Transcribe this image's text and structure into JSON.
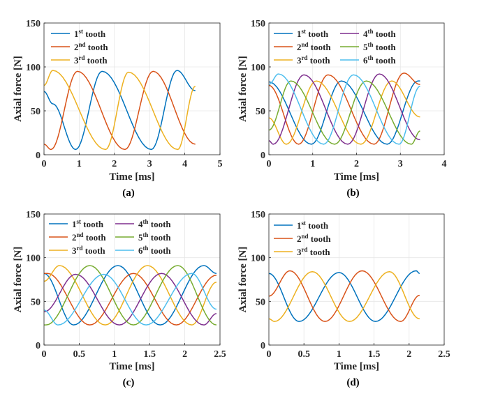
{
  "chart_data": [
    {
      "type": "line",
      "panel_label": "(a)",
      "xlabel": "Time [ms]",
      "ylabel": "Axial force [N]",
      "xlim": [
        0,
        5
      ],
      "ylim": [
        0,
        150
      ],
      "xticks": [
        0,
        1,
        2,
        3,
        4,
        5
      ],
      "yticks": [
        0,
        50,
        100,
        150
      ],
      "xtick_labels": [
        "0",
        "1",
        "2",
        "3",
        "4",
        "5"
      ],
      "ytick_labels": [
        "0",
        "50",
        "100",
        "150"
      ],
      "grid": true,
      "legend_placement": "top-left",
      "legend_columns": 1,
      "series": [
        {
          "name": "1st tooth",
          "num": "1",
          "sup": "st",
          "suffix": " tooth",
          "color": "#0072BD",
          "points": [
            [
              0,
              72
            ],
            [
              0.25,
              58
            ],
            [
              0.9,
              6
            ],
            [
              1.65,
              95
            ],
            [
              3.05,
              6
            ],
            [
              3.78,
              96
            ],
            [
              4.3,
              73
            ]
          ]
        },
        {
          "name": "2nd tooth",
          "num": "2",
          "sup": "nd",
          "suffix": " tooth",
          "color": "#D95319",
          "points": [
            [
              0,
              12
            ],
            [
              0.2,
              6
            ],
            [
              0.95,
              95
            ],
            [
              2.3,
              6
            ],
            [
              3.1,
              95
            ],
            [
              4.3,
              12
            ]
          ]
        },
        {
          "name": "3rd tooth",
          "num": "3",
          "sup": "rd",
          "suffix": " tooth",
          "color": "#EDB120",
          "points": [
            [
              0,
              79
            ],
            [
              0.25,
              96
            ],
            [
              1.75,
              6
            ],
            [
              2.4,
              94
            ],
            [
              3.8,
              6
            ],
            [
              4.3,
              78
            ]
          ]
        }
      ]
    },
    {
      "type": "line",
      "panel_label": "(b)",
      "xlabel": "Time [ms]",
      "ylabel": "Axial force [N]",
      "xlim": [
        0,
        4
      ],
      "ylim": [
        0,
        150
      ],
      "xticks": [
        0,
        1,
        2,
        3,
        4
      ],
      "yticks": [
        0,
        50,
        100,
        150
      ],
      "xtick_labels": [
        "0",
        "1",
        "2",
        "3",
        "4"
      ],
      "ytick_labels": [
        "0",
        "50",
        "100",
        "150"
      ],
      "grid": true,
      "legend_placement": "top-left",
      "legend_columns": 2,
      "series": [
        {
          "name": "1st tooth",
          "num": "1",
          "sup": "st",
          "suffix": " tooth",
          "color": "#0072BD",
          "points": [
            [
              0,
              83
            ],
            [
              0.97,
              12
            ],
            [
              1.65,
              84
            ],
            [
              2.7,
              12
            ],
            [
              3.4,
              84
            ],
            [
              3.45,
              84
            ]
          ]
        },
        {
          "name": "2nd tooth",
          "num": "2",
          "sup": "nd",
          "suffix": " tooth",
          "color": "#D95319",
          "points": [
            [
              0,
              79
            ],
            [
              0.68,
              12
            ],
            [
              1.35,
              91
            ],
            [
              2.4,
              12
            ],
            [
              3.08,
              93
            ],
            [
              3.45,
              80
            ]
          ]
        },
        {
          "name": "3rd tooth",
          "num": "3",
          "sup": "rd",
          "suffix": " tooth",
          "color": "#EDB120",
          "points": [
            [
              0,
              42
            ],
            [
              0.4,
              12
            ],
            [
              1.08,
              84
            ],
            [
              2.1,
              12
            ],
            [
              2.8,
              84
            ],
            [
              3.45,
              43
            ]
          ]
        },
        {
          "name": "4th tooth",
          "num": "4",
          "sup": "th",
          "suffix": " tooth",
          "color": "#7E2F8E",
          "points": [
            [
              0,
              16
            ],
            [
              0.1,
              12
            ],
            [
              0.8,
              91
            ],
            [
              1.8,
              12
            ],
            [
              2.52,
              92
            ],
            [
              3.45,
              17
            ]
          ]
        },
        {
          "name": "5th tooth",
          "num": "5",
          "sup": "th",
          "suffix": " tooth",
          "color": "#77AC30",
          "points": [
            [
              0,
              28
            ],
            [
              0.5,
              84
            ],
            [
              1.5,
              12
            ],
            [
              2.22,
              84
            ],
            [
              3.25,
              12
            ],
            [
              3.45,
              27
            ]
          ]
        },
        {
          "name": "6th tooth",
          "num": "6",
          "sup": "th",
          "suffix": " tooth",
          "color": "#4DBEEE",
          "points": [
            [
              0,
              80
            ],
            [
              0.22,
              92
            ],
            [
              1.25,
              12
            ],
            [
              1.93,
              91
            ],
            [
              2.97,
              12
            ],
            [
              3.45,
              78
            ]
          ]
        }
      ]
    },
    {
      "type": "line",
      "panel_label": "(c)",
      "xlabel": "Time [ms]",
      "ylabel": "Axial force [N]",
      "xlim": [
        0,
        2.5
      ],
      "ylim": [
        0,
        150
      ],
      "xticks": [
        0,
        0.5,
        1,
        1.5,
        2,
        2.5
      ],
      "yticks": [
        0,
        50,
        100,
        150
      ],
      "xtick_labels": [
        "0",
        "0.5",
        "1",
        "1.5",
        "2",
        "2.5"
      ],
      "ytick_labels": [
        "0",
        "50",
        "100",
        "150"
      ],
      "grid": true,
      "legend_placement": "top-left",
      "legend_columns": 2,
      "series": [
        {
          "name": "1st tooth",
          "num": "1",
          "sup": "st",
          "suffix": " tooth",
          "color": "#0072BD",
          "points": [
            [
              0,
              82
            ],
            [
              0.42,
              23
            ],
            [
              1.05,
              91
            ],
            [
              1.65,
              23
            ],
            [
              2.27,
              91
            ],
            [
              2.45,
              82
            ]
          ]
        },
        {
          "name": "2nd tooth",
          "num": "2",
          "sup": "nd",
          "suffix": " tooth",
          "color": "#D95319",
          "points": [
            [
              0,
              82
            ],
            [
              0.05,
              82
            ],
            [
              0.65,
              23
            ],
            [
              1.27,
              82
            ],
            [
              1.88,
              23
            ],
            [
              2.45,
              80
            ]
          ]
        },
        {
          "name": "3rd tooth",
          "num": "3",
          "sup": "rd",
          "suffix": " tooth",
          "color": "#EDB120",
          "points": [
            [
              0,
              73
            ],
            [
              0.22,
              91
            ],
            [
              0.87,
              23
            ],
            [
              1.47,
              91
            ],
            [
              2.1,
              23
            ],
            [
              2.45,
              72
            ]
          ]
        },
        {
          "name": "4th tooth",
          "num": "4",
          "sup": "th",
          "suffix": " tooth",
          "color": "#7E2F8E",
          "points": [
            [
              0,
              38
            ],
            [
              0.45,
              81
            ],
            [
              1.07,
              23
            ],
            [
              1.67,
              82
            ],
            [
              2.27,
              23
            ],
            [
              2.45,
              36
            ]
          ]
        },
        {
          "name": "5th tooth",
          "num": "5",
          "sup": "th",
          "suffix": " tooth",
          "color": "#77AC30",
          "points": [
            [
              0,
              23
            ],
            [
              0.03,
              23
            ],
            [
              0.65,
              91
            ],
            [
              1.27,
              23
            ],
            [
              1.9,
              91
            ],
            [
              2.45,
              23
            ]
          ]
        },
        {
          "name": "6th tooth",
          "num": "6",
          "sup": "th",
          "suffix": " tooth",
          "color": "#4DBEEE",
          "points": [
            [
              0,
              40
            ],
            [
              0.2,
              23
            ],
            [
              0.85,
              81
            ],
            [
              1.45,
              23
            ],
            [
              2.1,
              82
            ],
            [
              2.45,
              41
            ]
          ]
        }
      ]
    },
    {
      "type": "line",
      "panel_label": "(d)",
      "xlabel": "Time [ms]",
      "ylabel": "Axial force [N]",
      "xlim": [
        0,
        2.5
      ],
      "ylim": [
        0,
        150
      ],
      "xticks": [
        0,
        0.5,
        1,
        1.5,
        2,
        2.5
      ],
      "yticks": [
        0,
        50,
        100,
        150
      ],
      "xtick_labels": [
        "0",
        "0.5",
        "1",
        "1.5",
        "2",
        "2.5"
      ],
      "ytick_labels": [
        "0",
        "50",
        "100",
        "150"
      ],
      "grid": true,
      "legend_placement": "top-left",
      "legend_columns": 1,
      "series": [
        {
          "name": "1st tooth",
          "num": "1",
          "sup": "st",
          "suffix": " tooth",
          "color": "#0072BD",
          "points": [
            [
              0,
              82
            ],
            [
              0.43,
              27
            ],
            [
              1.0,
              83
            ],
            [
              1.52,
              27
            ],
            [
              2.1,
              85
            ],
            [
              2.15,
              82
            ]
          ]
        },
        {
          "name": "2nd tooth",
          "num": "2",
          "sup": "nd",
          "suffix": " tooth",
          "color": "#D95319",
          "points": [
            [
              0,
              56
            ],
            [
              0.3,
              85
            ],
            [
              0.8,
              27
            ],
            [
              1.33,
              85
            ],
            [
              1.88,
              27
            ],
            [
              2.15,
              57
            ]
          ]
        },
        {
          "name": "3rd tooth",
          "num": "3",
          "sup": "rd",
          "suffix": " tooth",
          "color": "#EDB120",
          "points": [
            [
              0,
              30
            ],
            [
              0.08,
              27
            ],
            [
              0.62,
              84
            ],
            [
              1.15,
              27
            ],
            [
              1.72,
              84
            ],
            [
              2.15,
              30
            ]
          ]
        }
      ]
    }
  ]
}
